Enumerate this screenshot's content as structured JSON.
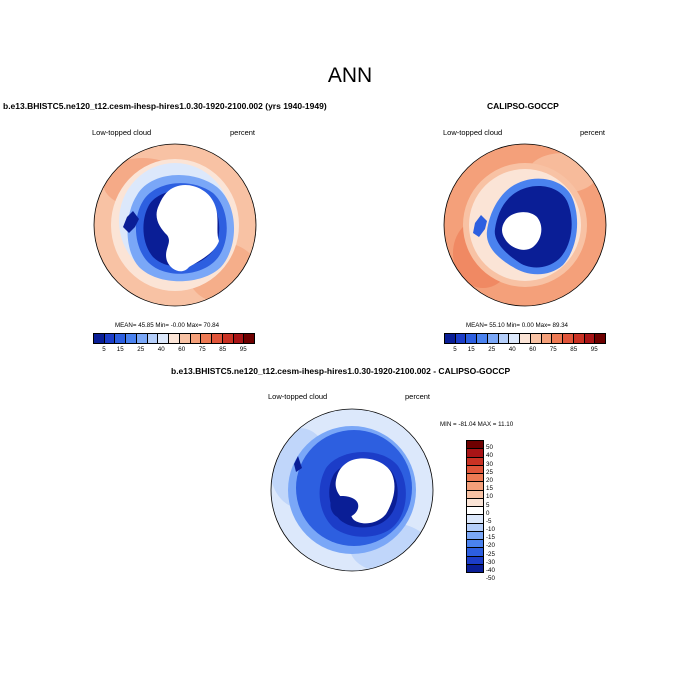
{
  "main_title": "ANN",
  "panels": {
    "model": {
      "title": "b.e13.BHISTC5.ne120_t12.cesm-ihesp-hires1.0.30-1920-2100.002 (yrs 1940-1949)",
      "left_label": "Low-topped cloud",
      "right_label": "percent",
      "stats": "MEAN= 45.85  Min= -0.00  Max= 70.84"
    },
    "obs": {
      "title": "CALIPSO-GOCCP",
      "left_label": "Low-topped cloud",
      "right_label": "percent",
      "stats": "MEAN= 55.10  Min=  0.00  Max= 89.34"
    },
    "diff": {
      "title": "b.e13.BHISTC5.ne120_t12.cesm-ihesp-hires1.0.30-1920-2100.002 - CALIPSO-GOCCP",
      "left_label": "Low-topped cloud",
      "right_label": "percent",
      "stats": "MIN = -81.04 MAX =  11.10"
    }
  },
  "colorbar_abs": {
    "colors": [
      "#0a1e96",
      "#1c3dc8",
      "#2d5fe0",
      "#4a82ef",
      "#7aa7f7",
      "#b4cefa",
      "#dce8fb",
      "#fbe4d6",
      "#f8c2a4",
      "#f4a07a",
      "#ed7a54",
      "#e0553a",
      "#c93224",
      "#a81416",
      "#6e0000"
    ],
    "ticks": [
      "5",
      "15",
      "25",
      "40",
      "60",
      "75",
      "85",
      "95"
    ]
  },
  "colorbar_diff": {
    "colors": [
      "#6e0000",
      "#a81416",
      "#c93224",
      "#e0553a",
      "#ed7a54",
      "#f4a07a",
      "#f8c2a4",
      "#fbe4d6",
      "#ffffff",
      "#dce8fb",
      "#b4cefa",
      "#7aa7f7",
      "#4a82ef",
      "#2d5fe0",
      "#1c3dc8",
      "#0a1e96"
    ],
    "ticks": [
      "50",
      "40",
      "30",
      "25",
      "20",
      "15",
      "10",
      "5",
      "0",
      "-5",
      "-10",
      "-15",
      "-20",
      "-25",
      "-30",
      "-40",
      "-50"
    ]
  }
}
